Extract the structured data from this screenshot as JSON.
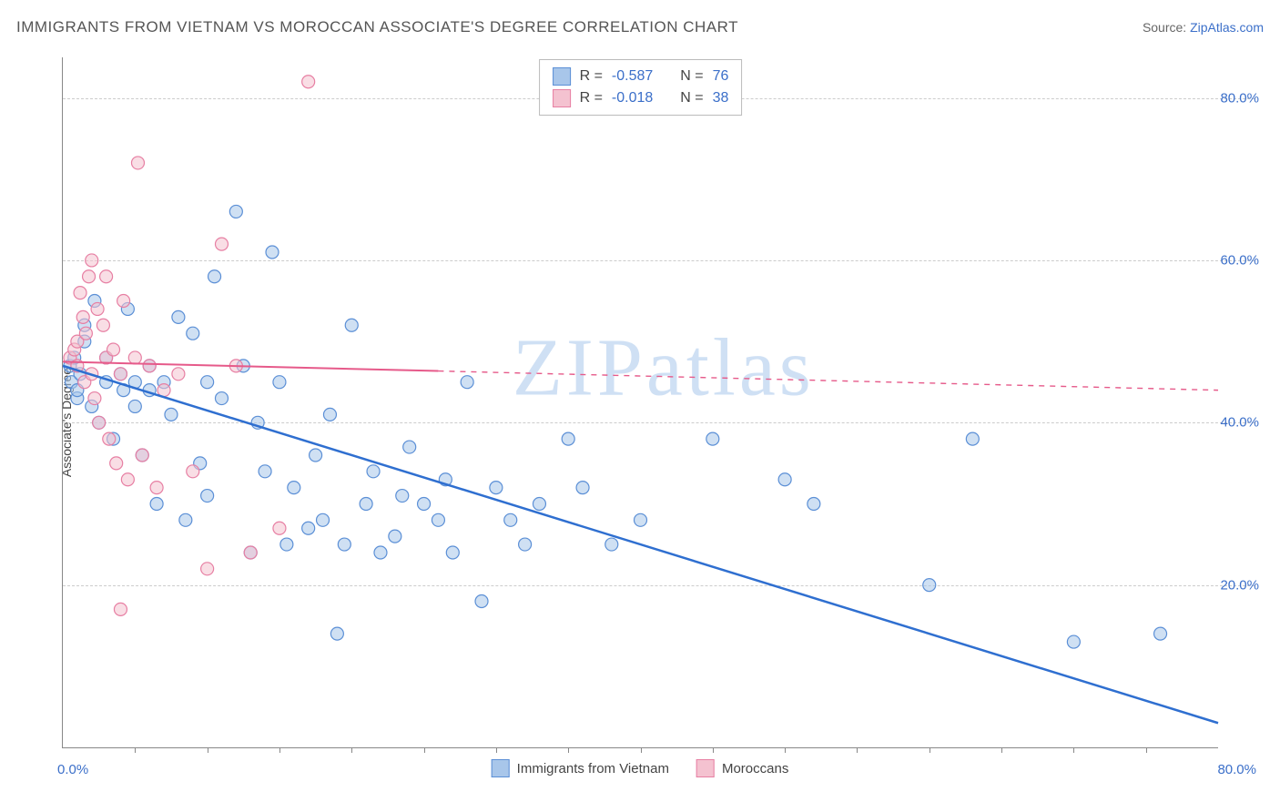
{
  "title": "IMMIGRANTS FROM VIETNAM VS MOROCCAN ASSOCIATE'S DEGREE CORRELATION CHART",
  "source_label": "Source:",
  "source_link": "ZipAtlas.com",
  "ylabel": "Associate's Degree",
  "watermark": "ZIPatlas",
  "chart": {
    "type": "scatter",
    "xlim": [
      0,
      80
    ],
    "ylim": [
      0,
      85
    ],
    "y_ticks": [
      20,
      40,
      60,
      80
    ],
    "y_tick_labels": [
      "20.0%",
      "40.0%",
      "60.0%",
      "80.0%"
    ],
    "x_minor_ticks": [
      5,
      10,
      15,
      20,
      25,
      30,
      35,
      40,
      45,
      50,
      55,
      60,
      65,
      70,
      75
    ],
    "x_label_min": "0.0%",
    "x_label_max": "80.0%",
    "background_color": "#ffffff",
    "grid_color": "#cccccc",
    "marker_radius": 7,
    "marker_stroke_width": 1.2,
    "series": [
      {
        "key": "vietnam",
        "label": "Immigrants from Vietnam",
        "fill": "#a8c6ea",
        "stroke": "#5b8fd6",
        "fill_opacity": 0.55,
        "R": "-0.587",
        "N": "76",
        "trend": {
          "x1": 0,
          "y1": 47,
          "x2": 80,
          "y2": 3,
          "solid_until_x": 80,
          "stroke": "#2f6fd0",
          "width": 2.5
        },
        "points": [
          [
            0.5,
            47
          ],
          [
            0.6,
            45
          ],
          [
            0.8,
            48
          ],
          [
            1,
            43
          ],
          [
            1,
            44
          ],
          [
            1.2,
            46
          ],
          [
            1.5,
            50
          ],
          [
            1.5,
            52
          ],
          [
            2,
            42
          ],
          [
            2.2,
            55
          ],
          [
            2.5,
            40
          ],
          [
            3,
            45
          ],
          [
            3,
            48
          ],
          [
            3.5,
            38
          ],
          [
            4,
            46
          ],
          [
            4.2,
            44
          ],
          [
            4.5,
            54
          ],
          [
            5,
            45
          ],
          [
            5,
            42
          ],
          [
            5.5,
            36
          ],
          [
            6,
            44
          ],
          [
            6,
            47
          ],
          [
            6.5,
            30
          ],
          [
            7,
            45
          ],
          [
            7.5,
            41
          ],
          [
            8,
            53
          ],
          [
            8.5,
            28
          ],
          [
            9,
            51
          ],
          [
            9.5,
            35
          ],
          [
            10,
            45
          ],
          [
            10,
            31
          ],
          [
            10.5,
            58
          ],
          [
            11,
            43
          ],
          [
            12,
            66
          ],
          [
            12.5,
            47
          ],
          [
            13,
            24
          ],
          [
            13.5,
            40
          ],
          [
            14,
            34
          ],
          [
            14.5,
            61
          ],
          [
            15,
            45
          ],
          [
            15.5,
            25
          ],
          [
            16,
            32
          ],
          [
            17,
            27
          ],
          [
            17.5,
            36
          ],
          [
            18,
            28
          ],
          [
            18.5,
            41
          ],
          [
            19,
            14
          ],
          [
            19.5,
            25
          ],
          [
            20,
            52
          ],
          [
            21,
            30
          ],
          [
            21.5,
            34
          ],
          [
            22,
            24
          ],
          [
            23,
            26
          ],
          [
            23.5,
            31
          ],
          [
            24,
            37
          ],
          [
            25,
            30
          ],
          [
            26,
            28
          ],
          [
            26.5,
            33
          ],
          [
            27,
            24
          ],
          [
            28,
            45
          ],
          [
            29,
            18
          ],
          [
            30,
            32
          ],
          [
            31,
            28
          ],
          [
            32,
            25
          ],
          [
            33,
            30
          ],
          [
            35,
            38
          ],
          [
            36,
            32
          ],
          [
            38,
            25
          ],
          [
            40,
            28
          ],
          [
            45,
            38
          ],
          [
            50,
            33
          ],
          [
            52,
            30
          ],
          [
            60,
            20
          ],
          [
            63,
            38
          ],
          [
            70,
            13
          ],
          [
            76,
            14
          ]
        ]
      },
      {
        "key": "moroccans",
        "label": "Moroccans",
        "fill": "#f4c2d0",
        "stroke": "#e77fa3",
        "fill_opacity": 0.55,
        "R": "-0.018",
        "N": "38",
        "trend": {
          "x1": 0,
          "y1": 47.5,
          "x2": 80,
          "y2": 44,
          "solid_until_x": 26,
          "stroke": "#e65a8a",
          "width": 2
        },
        "points": [
          [
            0.5,
            48
          ],
          [
            0.8,
            49
          ],
          [
            1,
            47
          ],
          [
            1,
            50
          ],
          [
            1.2,
            56
          ],
          [
            1.4,
            53
          ],
          [
            1.5,
            45
          ],
          [
            1.6,
            51
          ],
          [
            1.8,
            58
          ],
          [
            2,
            46
          ],
          [
            2,
            60
          ],
          [
            2.2,
            43
          ],
          [
            2.4,
            54
          ],
          [
            2.5,
            40
          ],
          [
            2.8,
            52
          ],
          [
            3,
            48
          ],
          [
            3,
            58
          ],
          [
            3.2,
            38
          ],
          [
            3.5,
            49
          ],
          [
            3.7,
            35
          ],
          [
            4,
            46
          ],
          [
            4.2,
            55
          ],
          [
            4.5,
            33
          ],
          [
            5,
            48
          ],
          [
            5.2,
            72
          ],
          [
            5.5,
            36
          ],
          [
            6,
            47
          ],
          [
            6.5,
            32
          ],
          [
            7,
            44
          ],
          [
            4,
            17
          ],
          [
            8,
            46
          ],
          [
            9,
            34
          ],
          [
            10,
            22
          ],
          [
            11,
            62
          ],
          [
            12,
            47
          ],
          [
            13,
            24
          ],
          [
            15,
            27
          ],
          [
            17,
            82
          ]
        ]
      }
    ]
  },
  "stats_box": {
    "label_R": "R =",
    "label_N": "N ="
  },
  "colors": {
    "axis": "#3b6fc9",
    "text": "#444444"
  }
}
